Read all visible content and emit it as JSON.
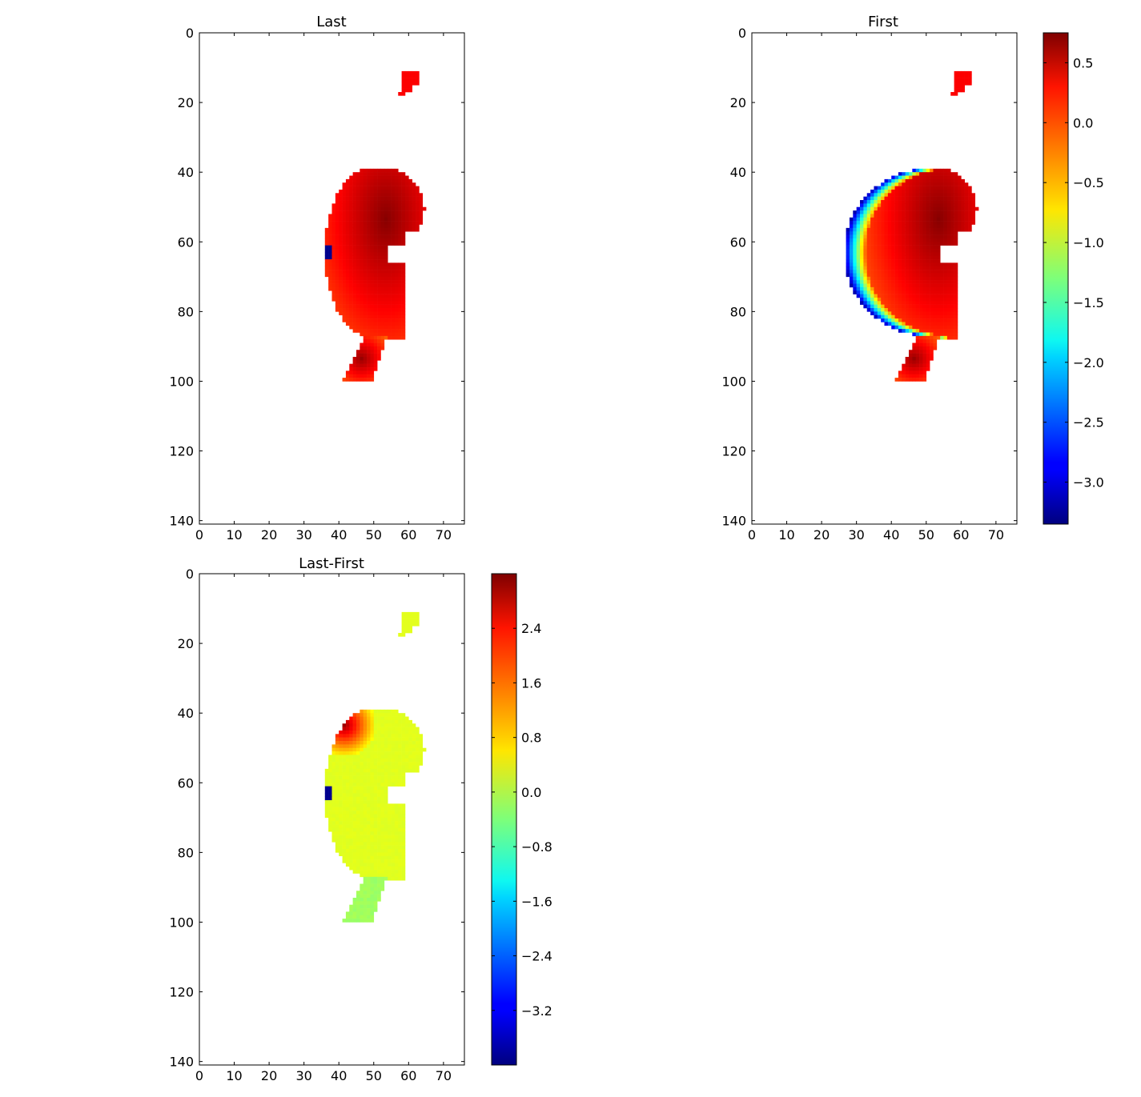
{
  "chart_data": [
    {
      "type": "heatmap",
      "title": "Last",
      "xlabel": "",
      "ylabel": "",
      "xlim": [
        0,
        76
      ],
      "ylim": [
        141,
        0
      ],
      "x_ticks": [
        "0",
        "10",
        "20",
        "30",
        "40",
        "50",
        "60",
        "70"
      ],
      "y_ticks": [
        "0",
        "20",
        "40",
        "60",
        "80",
        "100",
        "120",
        "140"
      ],
      "colormap": "jet",
      "value_range": [
        -3.35,
        0.75
      ],
      "colorbar": null,
      "regions": [
        {
          "rows": [
            11,
            17
          ],
          "cols": [
            57,
            63
          ],
          "value": 0.2
        },
        {
          "rows": [
            38,
            88
          ],
          "cols": [
            36,
            66
          ],
          "value_center": 0.7,
          "value_edge": 0.1,
          "center": [
            53,
            52
          ],
          "low_value_cells": [
            {
              "rows": [
                61,
                65
              ],
              "cols": [
                36,
                37
              ],
              "value": -3.3
            }
          ]
        },
        {
          "rows": [
            87,
            100
          ],
          "cols": [
            41,
            53
          ],
          "value_center": 0.6,
          "value_edge": 0.1
        }
      ]
    },
    {
      "type": "heatmap",
      "title": "First",
      "xlabel": "",
      "ylabel": "",
      "xlim": [
        0,
        76
      ],
      "ylim": [
        141,
        0
      ],
      "x_ticks": [
        "0",
        "10",
        "20",
        "30",
        "40",
        "50",
        "60",
        "70"
      ],
      "y_ticks": [
        "0",
        "20",
        "40",
        "60",
        "80",
        "100",
        "120",
        "140"
      ],
      "colormap": "jet",
      "value_range": [
        -3.35,
        0.75
      ],
      "colorbar": {
        "ticks": [
          "0.5",
          "0.0",
          "−0.5",
          "−1.0",
          "−1.5",
          "−2.0",
          "−2.5",
          "−3.0"
        ],
        "tick_values": [
          0.5,
          0.0,
          -0.5,
          -1.0,
          -1.5,
          -2.0,
          -2.5,
          -3.0
        ]
      },
      "regions": [
        {
          "rows": [
            11,
            17
          ],
          "cols": [
            57,
            63
          ],
          "value": 0.2
        },
        {
          "rows": [
            39,
            88
          ],
          "cols": [
            25,
            66
          ],
          "value_center": 0.7,
          "value_edge": -3.2,
          "center": [
            53,
            52
          ],
          "gradient": "west_edge_low"
        },
        {
          "rows": [
            87,
            100
          ],
          "cols": [
            40,
            53
          ],
          "value_center": 0.6,
          "value_edge": 0.1
        }
      ]
    },
    {
      "type": "heatmap",
      "title": "Last-First",
      "xlabel": "",
      "ylabel": "",
      "xlim": [
        0,
        76
      ],
      "ylim": [
        141,
        0
      ],
      "x_ticks": [
        "0",
        "10",
        "20",
        "30",
        "40",
        "50",
        "60",
        "70"
      ],
      "y_ticks": [
        "0",
        "20",
        "40",
        "60",
        "80",
        "100",
        "120",
        "140"
      ],
      "colormap": "jet",
      "value_range": [
        -4.0,
        3.2
      ],
      "colorbar": {
        "ticks": [
          "2.4",
          "1.6",
          "0.8",
          "0.0",
          "−0.8",
          "−1.6",
          "−2.4",
          "−3.2"
        ],
        "tick_values": [
          2.4,
          1.6,
          0.8,
          0.0,
          -0.8,
          -1.6,
          -2.4,
          -3.2
        ]
      },
      "regions": [
        {
          "rows": [
            11,
            17
          ],
          "cols": [
            57,
            63
          ],
          "value": 0.3
        },
        {
          "rows": [
            38,
            88
          ],
          "cols": [
            36,
            66
          ],
          "value_typical": 0.2,
          "value_nw_corner": 3.0,
          "low_value_cells": [
            {
              "rows": [
                61,
                65
              ],
              "cols": [
                36,
                37
              ],
              "value": -3.9
            }
          ]
        },
        {
          "rows": [
            87,
            100
          ],
          "cols": [
            41,
            53
          ],
          "value": -0.2
        }
      ]
    }
  ]
}
